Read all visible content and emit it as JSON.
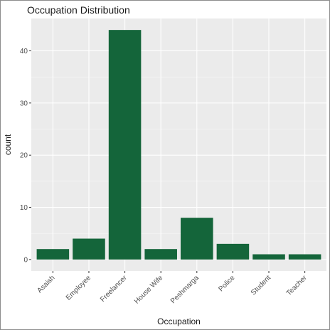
{
  "chart_data": {
    "type": "bar",
    "title": "Occupation Distribution",
    "xlabel": "Occupation",
    "ylabel": "count",
    "categories": [
      "Asaish",
      "Employee",
      "Freelancer",
      "House Wife",
      "Peshmarga",
      "Police",
      "Student",
      "Teacher"
    ],
    "values": [
      2,
      4,
      44,
      2,
      8,
      3,
      1,
      1
    ],
    "yticks": [
      0,
      10,
      20,
      30,
      40
    ],
    "ylim": [
      -2.2,
      46.2
    ],
    "bar_color": "#14653a",
    "panel_background": "#ebebeb",
    "grid": true,
    "legend": "none"
  }
}
